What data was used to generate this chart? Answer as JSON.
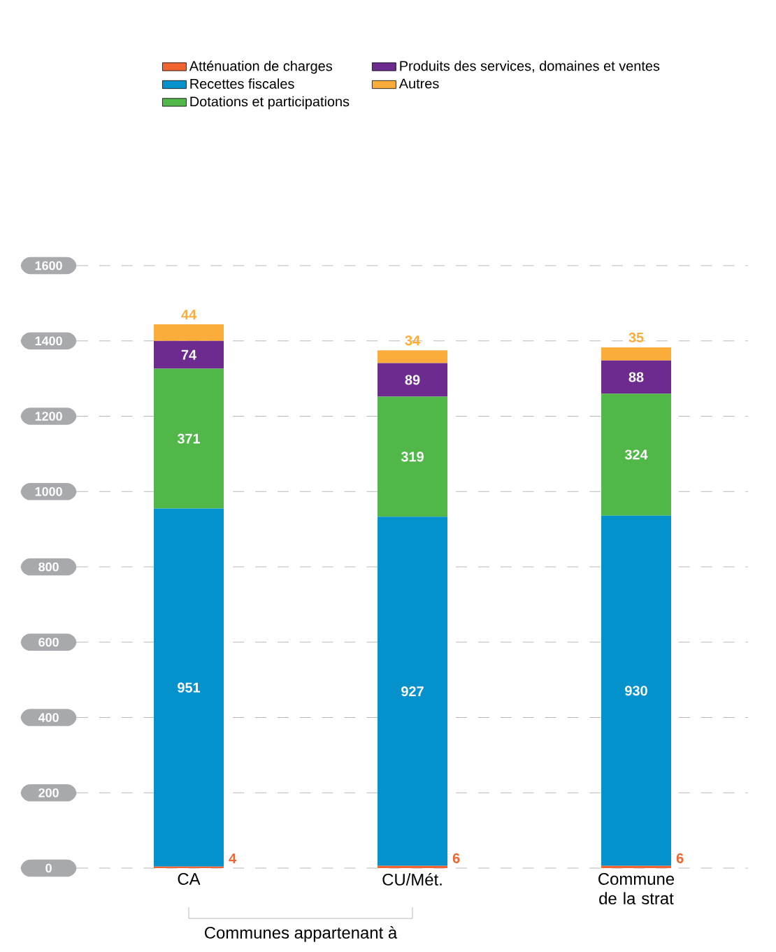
{
  "chart_data": {
    "type": "bar",
    "stacked": true,
    "data_labels": true,
    "legend": "top",
    "grid": "y",
    "categories": [
      "CA",
      "CU/Mét.",
      "Commune de la strat"
    ],
    "series": [
      {
        "name": "Atténuation de charges",
        "color": "#f26530",
        "values": [
          4,
          6,
          6
        ]
      },
      {
        "name": "Recettes fiscales",
        "color": "#0592cc",
        "values": [
          951,
          927,
          930
        ]
      },
      {
        "name": "Dotations et participations",
        "color": "#50b748",
        "values": [
          371,
          319,
          324
        ]
      },
      {
        "name": "Produits des services, domaines et ventes",
        "color": "#6d2b8f",
        "values": [
          74,
          89,
          88
        ]
      },
      {
        "name": "Autres",
        "color": "#fbad3c",
        "values": [
          44,
          34,
          35
        ]
      }
    ],
    "ylim": [
      0,
      1600
    ],
    "yticks": [
      0,
      200,
      400,
      600,
      800,
      1000,
      1200,
      1400,
      1600
    ],
    "annotations": [
      "Communes appartenant à"
    ]
  }
}
